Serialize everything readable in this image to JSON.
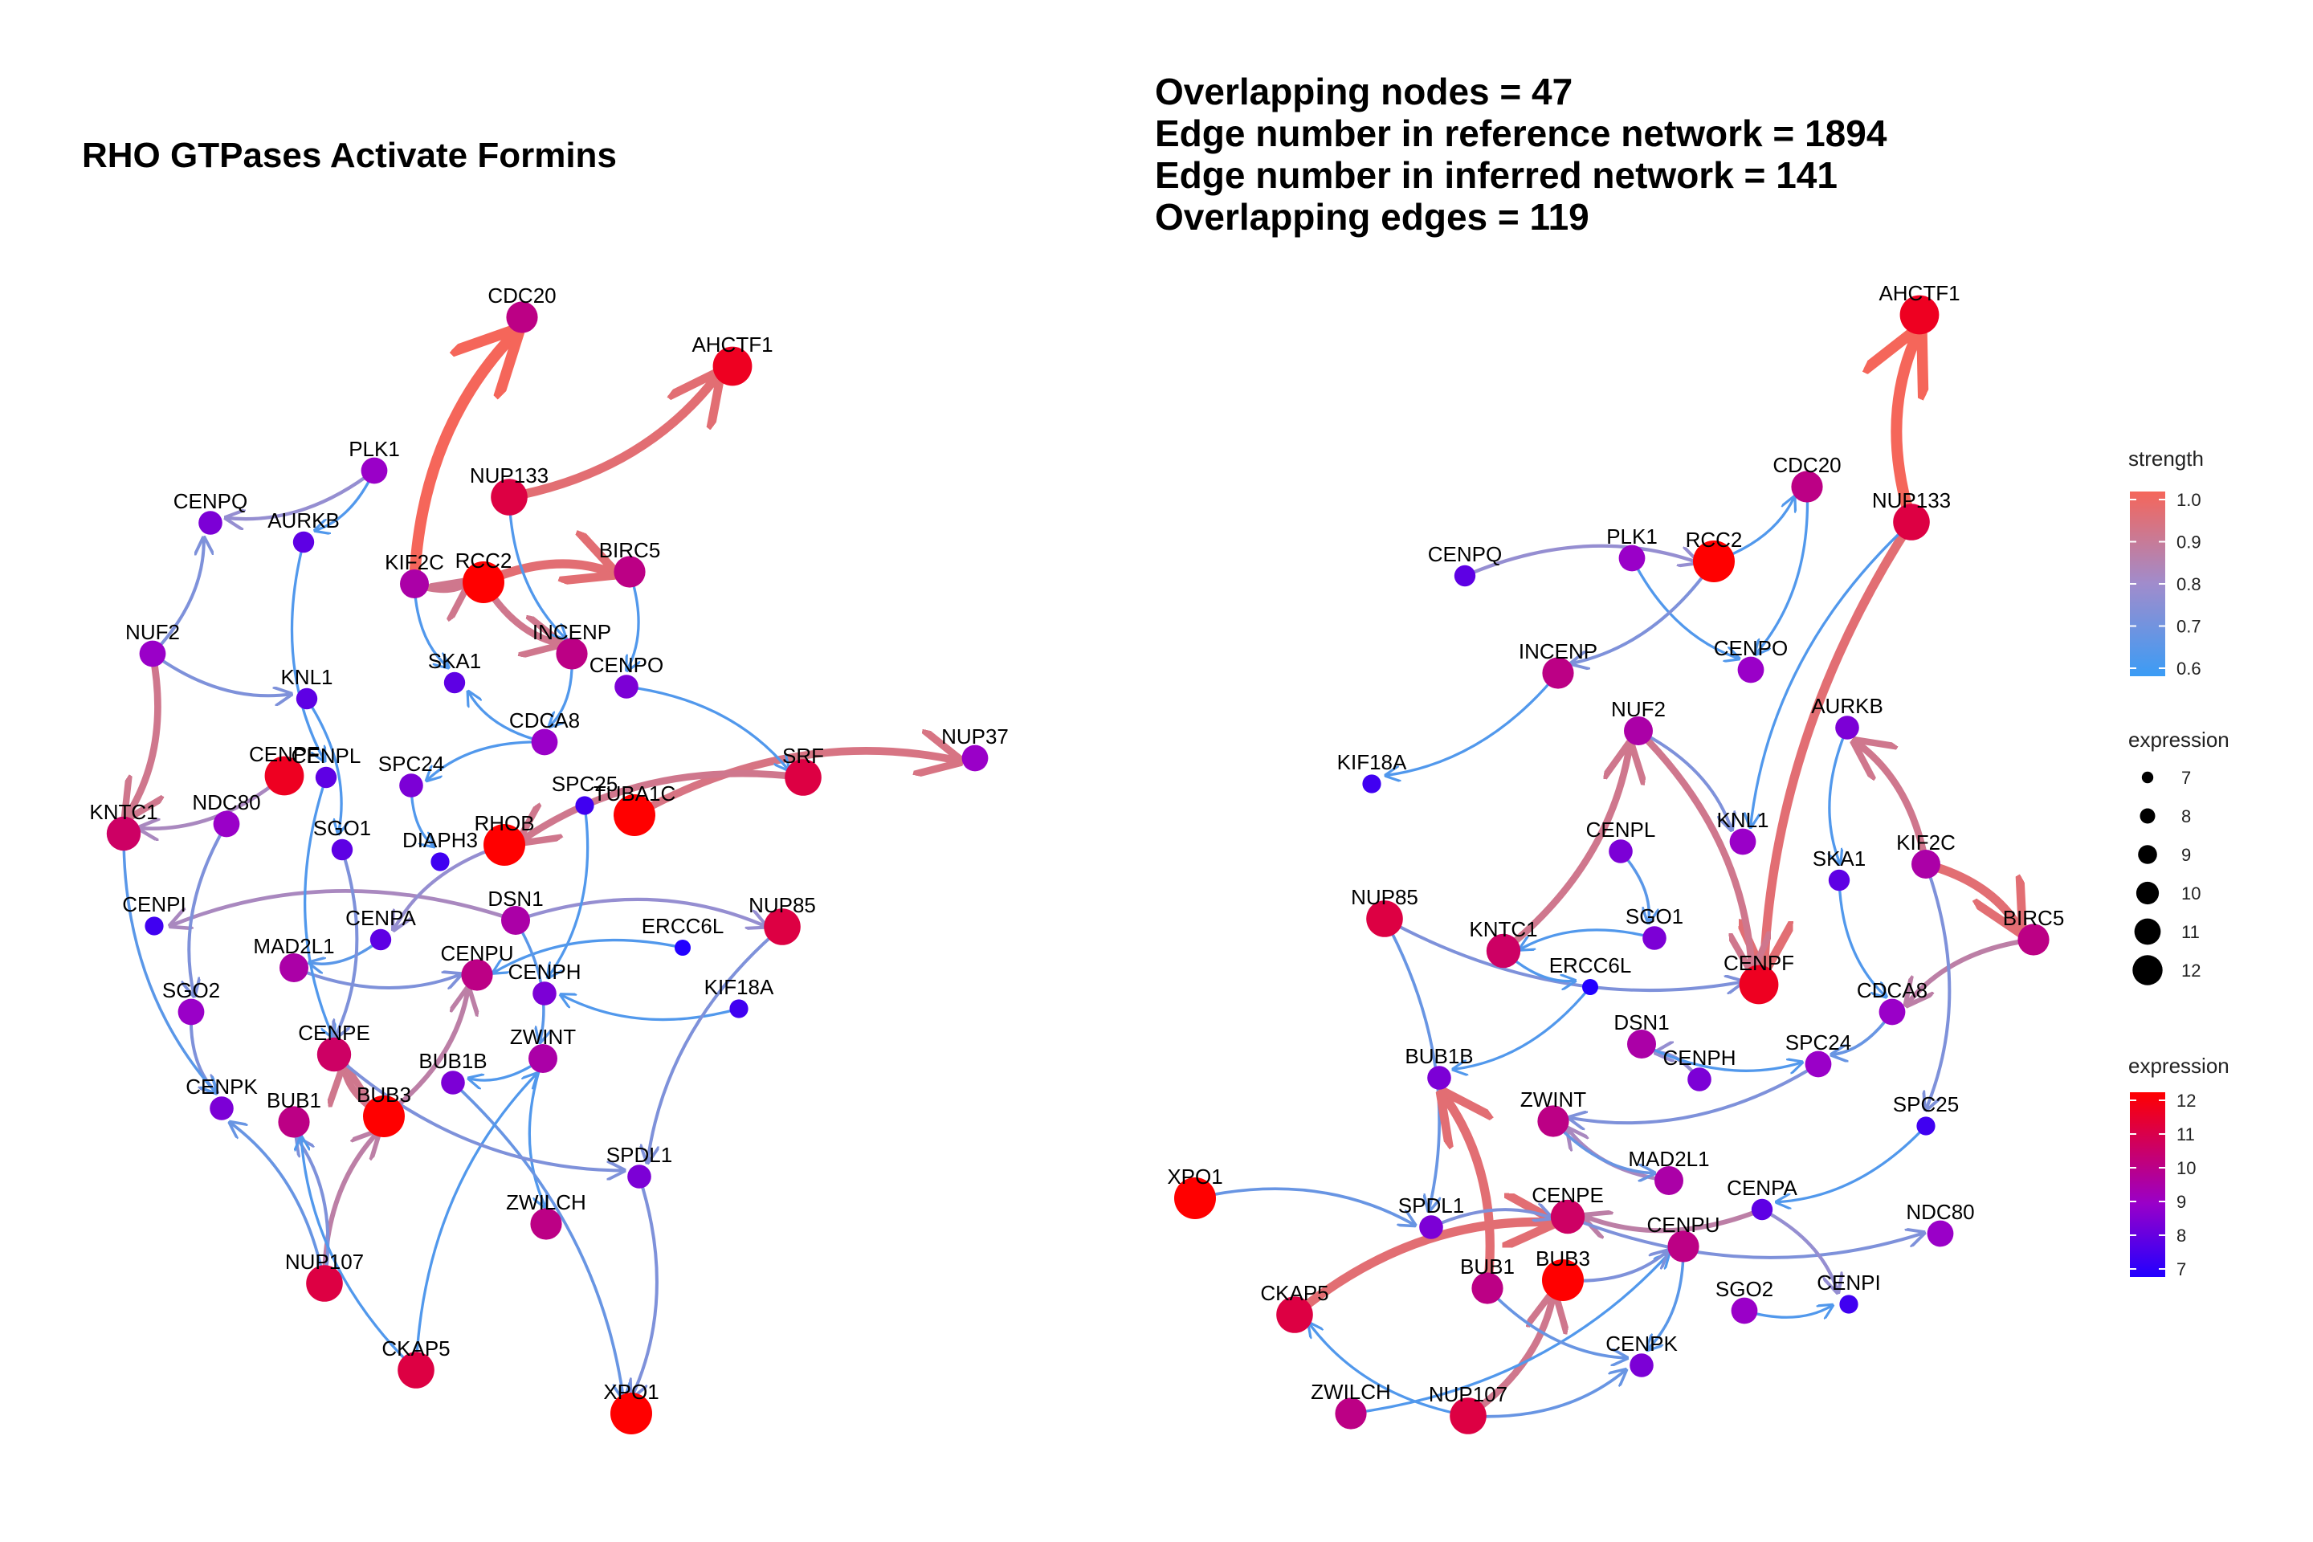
{
  "left_panel": {
    "title": "RHO GTPases Activate Formins",
    "nodes": [
      {
        "id": "CDC20",
        "expr": 10
      },
      {
        "id": "AHCTF1",
        "expr": 11.5
      },
      {
        "id": "NUP133",
        "expr": 11
      },
      {
        "id": "PLK1",
        "expr": 9
      },
      {
        "id": "CENPQ",
        "expr": 8.5
      },
      {
        "id": "AURKB",
        "expr": 8
      },
      {
        "id": "KIF2C",
        "expr": 9.5
      },
      {
        "id": "RCC2",
        "expr": 12
      },
      {
        "id": "BIRC5",
        "expr": 10
      },
      {
        "id": "INCENP",
        "expr": 10
      },
      {
        "id": "NUF2",
        "expr": 9
      },
      {
        "id": "CENPO",
        "expr": 8.5
      },
      {
        "id": "SKA1",
        "expr": 8
      },
      {
        "id": "KNL1",
        "expr": 8
      },
      {
        "id": "CDCA8",
        "expr": 9
      },
      {
        "id": "NUP37",
        "expr": 9
      },
      {
        "id": "CENPF",
        "expr": 11.5
      },
      {
        "id": "CENPL",
        "expr": 8
      },
      {
        "id": "SPC25",
        "expr": 7.5
      },
      {
        "id": "SRF",
        "expr": 11
      },
      {
        "id": "NDC80",
        "expr": 9
      },
      {
        "id": "SPC24",
        "expr": 8.5
      },
      {
        "id": "RHOB",
        "expr": 12
      },
      {
        "id": "TUBA1C",
        "expr": 12
      },
      {
        "id": "KNTC1",
        "expr": 10.5
      },
      {
        "id": "SGO1",
        "expr": 8
      },
      {
        "id": "DIAPH3",
        "expr": 7.5
      },
      {
        "id": "CENPI",
        "expr": 7.5
      },
      {
        "id": "DSN1",
        "expr": 9.5
      },
      {
        "id": "NUP85",
        "expr": 11
      },
      {
        "id": "CENPA",
        "expr": 8
      },
      {
        "id": "ERCC6L",
        "expr": 7
      },
      {
        "id": "MAD2L1",
        "expr": 9.5
      },
      {
        "id": "CENPH",
        "expr": 8.5
      },
      {
        "id": "KIF18A",
        "expr": 7.5
      },
      {
        "id": "SGO2",
        "expr": 9
      },
      {
        "id": "CENPU",
        "expr": 10
      },
      {
        "id": "CENPE",
        "expr": 10.5
      },
      {
        "id": "ZWINT",
        "expr": 9.5
      },
      {
        "id": "CENPK",
        "expr": 8.5
      },
      {
        "id": "BUB1",
        "expr": 10
      },
      {
        "id": "BUB3",
        "expr": 12
      },
      {
        "id": "BUB1B",
        "expr": 8.5
      },
      {
        "id": "SPDL1",
        "expr": 8.5
      },
      {
        "id": "ZWILCH",
        "expr": 10
      },
      {
        "id": "NUP107",
        "expr": 11
      },
      {
        "id": "CKAP5",
        "expr": 11
      },
      {
        "id": "XPO1",
        "expr": 12
      }
    ],
    "edges": [
      {
        "from": "KIF2C",
        "to": "CDC20",
        "strength": 1.0
      },
      {
        "from": "NUP133",
        "to": "AHCTF1",
        "strength": 0.95
      },
      {
        "from": "PLK1",
        "to": "CENPQ",
        "strength": 0.75
      },
      {
        "from": "KIF2C",
        "to": "RCC2",
        "strength": 0.9
      },
      {
        "from": "RCC2",
        "to": "BIRC5",
        "strength": 0.95
      },
      {
        "from": "RCC2",
        "to": "INCENP",
        "strength": 0.9
      },
      {
        "from": "NUF2",
        "to": "KNTC1",
        "strength": 0.9
      },
      {
        "from": "NUF2",
        "to": "KNL1",
        "strength": 0.7
      },
      {
        "from": "TUBA1C",
        "to": "NUP37",
        "strength": 0.92
      },
      {
        "from": "SRF",
        "to": "RHOB",
        "strength": 0.9
      },
      {
        "from": "DSN1",
        "to": "NUP85",
        "strength": 0.75
      },
      {
        "from": "DSN1",
        "to": "CENPI",
        "strength": 0.8
      },
      {
        "from": "BUB3",
        "to": "CENPE",
        "strength": 0.9
      },
      {
        "from": "BUB3",
        "to": "CENPU",
        "strength": 0.85
      },
      {
        "from": "NUP107",
        "to": "BUB3",
        "strength": 0.85
      },
      {
        "from": "NUP107",
        "to": "BUB1",
        "strength": 0.7
      },
      {
        "from": "SPDL1",
        "to": "XPO1",
        "strength": 0.7
      },
      {
        "from": "ZWINT",
        "to": "ZWILCH",
        "strength": 0.6
      },
      {
        "from": "BUB1B",
        "to": "XPO1",
        "strength": 0.65
      },
      {
        "from": "NUP107",
        "to": "CENPK",
        "strength": 0.65
      },
      {
        "from": "CKAP5",
        "to": "ZWINT",
        "strength": 0.6
      },
      {
        "from": "CENPE",
        "to": "SPDL1",
        "strength": 0.7
      },
      {
        "from": "BIRC5",
        "to": "CENPO",
        "strength": 0.6
      },
      {
        "from": "NUP133",
        "to": "INCENP",
        "strength": 0.6
      },
      {
        "from": "CDCA8",
        "to": "SKA1",
        "strength": 0.6
      },
      {
        "from": "AURKB",
        "to": "CENPL",
        "strength": 0.6
      },
      {
        "from": "KNL1",
        "to": "SGO1",
        "strength": 0.6
      },
      {
        "from": "SPC24",
        "to": "DIAPH3",
        "strength": 0.6
      },
      {
        "from": "CENPA",
        "to": "MAD2L1",
        "strength": 0.62
      },
      {
        "from": "NDC80",
        "to": "SGO2",
        "strength": 0.7
      },
      {
        "from": "KIF18A",
        "to": "CENPH",
        "strength": 0.6
      },
      {
        "from": "ERCC6L",
        "to": "CENPU",
        "strength": 0.6
      },
      {
        "from": "CENPF",
        "to": "KNTC1",
        "strength": 0.8
      },
      {
        "from": "SGO2",
        "to": "CENPK",
        "strength": 0.7
      },
      {
        "from": "SPC25",
        "to": "CENPH",
        "strength": 0.6
      },
      {
        "from": "RHOB",
        "to": "CENPA",
        "strength": 0.75
      },
      {
        "from": "PLK1",
        "to": "AURKB",
        "strength": 0.6
      },
      {
        "from": "KIF2C",
        "to": "SKA1",
        "strength": 0.6
      },
      {
        "from": "DSN1",
        "to": "ZWINT",
        "strength": 0.62
      },
      {
        "from": "NUP85",
        "to": "SPDL1",
        "strength": 0.7
      },
      {
        "from": "CENPO",
        "to": "SRF",
        "strength": 0.6
      },
      {
        "from": "CDCA8",
        "to": "SPC24",
        "strength": 0.6
      },
      {
        "from": "INCENP",
        "to": "CDCA8",
        "strength": 0.6
      },
      {
        "from": "NUF2",
        "to": "CENPQ",
        "strength": 0.7
      },
      {
        "from": "ZWINT",
        "to": "BUB1B",
        "strength": 0.6
      },
      {
        "from": "MAD2L1",
        "to": "CENPU",
        "strength": 0.7
      },
      {
        "from": "CKAP5",
        "to": "BUB1",
        "strength": 0.6
      },
      {
        "from": "CENPL",
        "to": "CENPE",
        "strength": 0.6
      },
      {
        "from": "SGO1",
        "to": "CENPE",
        "strength": 0.7
      },
      {
        "from": "KNTC1",
        "to": "CENPK",
        "strength": 0.62
      }
    ]
  },
  "right_panel": {
    "stats": [
      "Overlapping nodes = 47",
      "Edge number in reference network = 1894",
      "Edge number in inferred network = 141",
      "Overlapping edges = 119"
    ],
    "nodes": [
      {
        "id": "AHCTF1",
        "expr": 11.5
      },
      {
        "id": "CDC20",
        "expr": 10
      },
      {
        "id": "NUP133",
        "expr": 11
      },
      {
        "id": "CENPQ",
        "expr": 8
      },
      {
        "id": "PLK1",
        "expr": 9
      },
      {
        "id": "RCC2",
        "expr": 12
      },
      {
        "id": "CENPO",
        "expr": 9
      },
      {
        "id": "INCENP",
        "expr": 10
      },
      {
        "id": "NUF2",
        "expr": 9.5
      },
      {
        "id": "AURKB",
        "expr": 8.5
      },
      {
        "id": "KIF18A",
        "expr": 7.5
      },
      {
        "id": "CENPL",
        "expr": 8.5
      },
      {
        "id": "KNL1",
        "expr": 9
      },
      {
        "id": "SKA1",
        "expr": 8
      },
      {
        "id": "KIF2C",
        "expr": 9.5
      },
      {
        "id": "NUP85",
        "expr": 11
      },
      {
        "id": "KNTC1",
        "expr": 10.5
      },
      {
        "id": "SGO1",
        "expr": 8.5
      },
      {
        "id": "ERCC6L",
        "expr": 7
      },
      {
        "id": "CENPF",
        "expr": 11.5
      },
      {
        "id": "BIRC5",
        "expr": 10
      },
      {
        "id": "BUB1B",
        "expr": 8.5
      },
      {
        "id": "DSN1",
        "expr": 9.5
      },
      {
        "id": "CDCA8",
        "expr": 9
      },
      {
        "id": "CENPH",
        "expr": 8.5
      },
      {
        "id": "SPC24",
        "expr": 9
      },
      {
        "id": "SPC25",
        "expr": 7.5
      },
      {
        "id": "ZWINT",
        "expr": 10
      },
      {
        "id": "MAD2L1",
        "expr": 9.5
      },
      {
        "id": "XPO1",
        "expr": 12
      },
      {
        "id": "SPDL1",
        "expr": 8.5
      },
      {
        "id": "CENPE",
        "expr": 10.5
      },
      {
        "id": "CENPA",
        "expr": 8
      },
      {
        "id": "NDC80",
        "expr": 9
      },
      {
        "id": "BUB3",
        "expr": 12
      },
      {
        "id": "CENPU",
        "expr": 10
      },
      {
        "id": "CKAP5",
        "expr": 11
      },
      {
        "id": "BUB1",
        "expr": 10
      },
      {
        "id": "SGO2",
        "expr": 9
      },
      {
        "id": "CENPI",
        "expr": 7.5
      },
      {
        "id": "CENPK",
        "expr": 8.5
      },
      {
        "id": "ZWILCH",
        "expr": 10
      },
      {
        "id": "NUP107",
        "expr": 11
      }
    ],
    "edges": [
      {
        "from": "NUP133",
        "to": "AHCTF1",
        "strength": 1.0
      },
      {
        "from": "RCC2",
        "to": "CDC20",
        "strength": 0.6
      },
      {
        "from": "CENPQ",
        "to": "RCC2",
        "strength": 0.75
      },
      {
        "from": "NUP133",
        "to": "CENPF",
        "strength": 0.95
      },
      {
        "from": "KIF2C",
        "to": "BIRC5",
        "strength": 0.95
      },
      {
        "from": "KIF2C",
        "to": "AURKB",
        "strength": 0.9
      },
      {
        "from": "NUF2",
        "to": "CENPF",
        "strength": 0.9
      },
      {
        "from": "KNTC1",
        "to": "NUF2",
        "strength": 0.9
      },
      {
        "from": "NUP85",
        "to": "SPDL1",
        "strength": 0.65
      },
      {
        "from": "BIRC5",
        "to": "CDCA8",
        "strength": 0.85
      },
      {
        "from": "XPO1",
        "to": "SPDL1",
        "strength": 0.65
      },
      {
        "from": "BUB1",
        "to": "BUB1B",
        "strength": 0.95
      },
      {
        "from": "CKAP5",
        "to": "CENPE",
        "strength": 0.95
      },
      {
        "from": "NUP107",
        "to": "BUB3",
        "strength": 0.9
      },
      {
        "from": "CENPA",
        "to": "CENPE",
        "strength": 0.85
      },
      {
        "from": "CENPE",
        "to": "NDC80",
        "strength": 0.7
      },
      {
        "from": "MAD2L1",
        "to": "ZWINT",
        "strength": 0.8
      },
      {
        "from": "NUP107",
        "to": "CENPK",
        "strength": 0.65
      },
      {
        "from": "CENPA",
        "to": "CENPI",
        "strength": 0.75
      },
      {
        "from": "CENPH",
        "to": "DSN1",
        "strength": 0.75
      },
      {
        "from": "SPC24",
        "to": "ZWINT",
        "strength": 0.7
      },
      {
        "from": "NUP85",
        "to": "CENPF",
        "strength": 0.7
      },
      {
        "from": "INCENP",
        "to": "KIF18A",
        "strength": 0.6
      },
      {
        "from": "PLK1",
        "to": "CENPO",
        "strength": 0.6
      },
      {
        "from": "CDC20",
        "to": "CENPO",
        "strength": 0.6
      },
      {
        "from": "AURKB",
        "to": "SKA1",
        "strength": 0.6
      },
      {
        "from": "NUF2",
        "to": "KNL1",
        "strength": 0.7
      },
      {
        "from": "SGO1",
        "to": "KNTC1",
        "strength": 0.6
      },
      {
        "from": "ERCC6L",
        "to": "BUB1B",
        "strength": 0.6
      },
      {
        "from": "DSN1",
        "to": "SPC24",
        "strength": 0.6
      },
      {
        "from": "SPC25",
        "to": "CENPA",
        "strength": 0.6
      },
      {
        "from": "ZWILCH",
        "to": "CENPU",
        "strength": 0.6
      },
      {
        "from": "CENPU",
        "to": "CENPK",
        "strength": 0.62
      },
      {
        "from": "SGO2",
        "to": "CENPI",
        "strength": 0.6
      },
      {
        "from": "KIF2C",
        "to": "SPC25",
        "strength": 0.7
      },
      {
        "from": "SKA1",
        "to": "CDCA8",
        "strength": 0.6
      },
      {
        "from": "CENPL",
        "to": "SGO1",
        "strength": 0.62
      },
      {
        "from": "NUP133",
        "to": "KNL1",
        "strength": 0.6
      },
      {
        "from": "RCC2",
        "to": "INCENP",
        "strength": 0.7
      },
      {
        "from": "ZWINT",
        "to": "MAD2L1",
        "strength": 0.65
      },
      {
        "from": "SPDL1",
        "to": "CENPE",
        "strength": 0.7
      },
      {
        "from": "BUB1",
        "to": "CENPK",
        "strength": 0.65
      },
      {
        "from": "NUP107",
        "to": "CKAP5",
        "strength": 0.6
      },
      {
        "from": "BUB3",
        "to": "CENPU",
        "strength": 0.7
      },
      {
        "from": "CDCA8",
        "to": "SPC24",
        "strength": 0.65
      },
      {
        "from": "KNTC1",
        "to": "ERCC6L",
        "strength": 0.6
      }
    ]
  },
  "legend": {
    "strength": {
      "title": "strength",
      "ticks": [
        "1.0",
        "0.9",
        "0.8",
        "0.7",
        "0.6"
      ],
      "low_color": "#3b9cf5",
      "high_color": "#f5665a"
    },
    "expression_size": {
      "title": "expression",
      "ticks": [
        "7",
        "8",
        "9",
        "10",
        "11",
        "12"
      ]
    },
    "expression_color": {
      "title": "expression",
      "ticks": [
        "12",
        "11",
        "10",
        "9",
        "8",
        "7"
      ],
      "low_color": "#2200ff",
      "high_color": "#ff0000"
    }
  }
}
